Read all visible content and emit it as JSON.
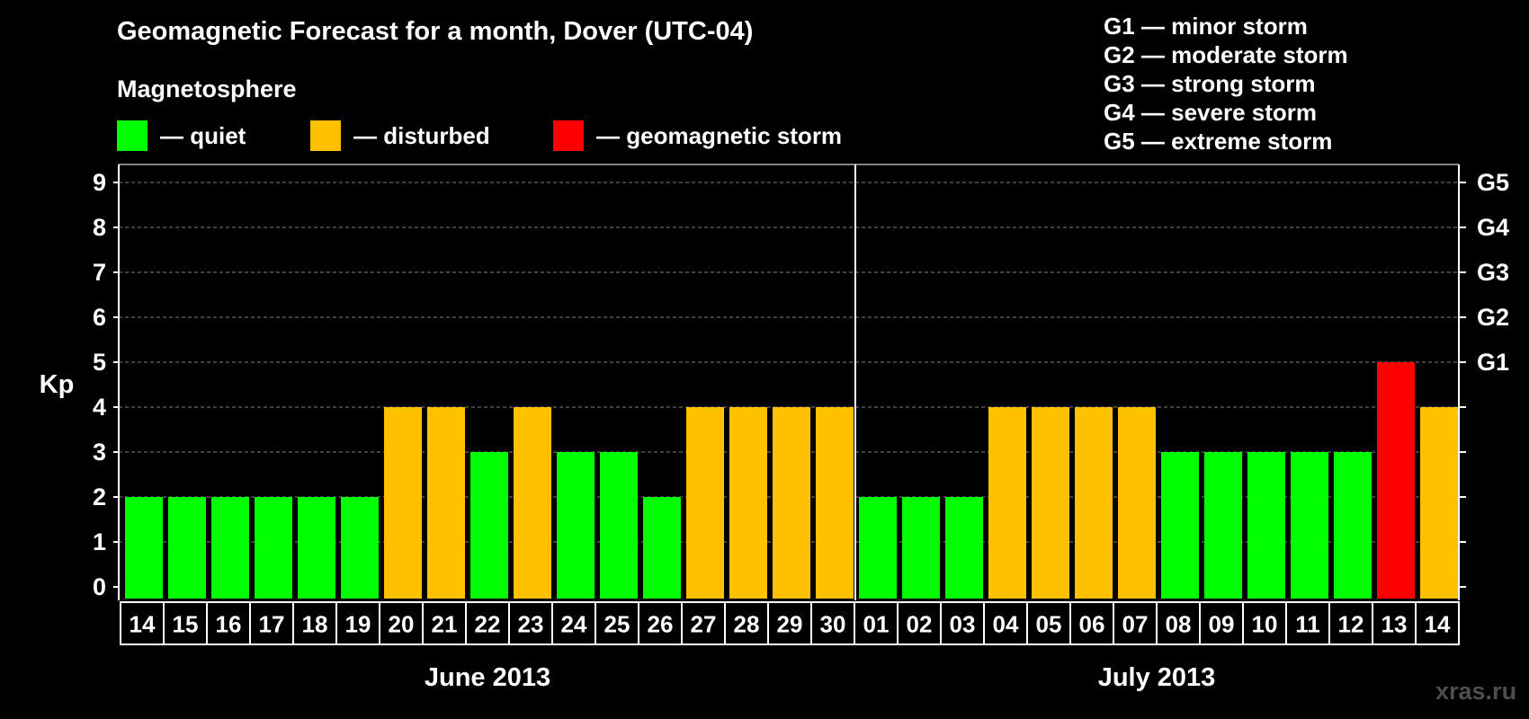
{
  "title": "Geomagnetic Forecast for a month, Dover (UTC-04)",
  "legend": {
    "heading": "Magnetosphere",
    "items": [
      {
        "label": "— quiet",
        "color": "#00ff00"
      },
      {
        "label": "— disturbed",
        "color": "#ffc000"
      },
      {
        "label": "— geomagnetic storm",
        "color": "#ff0000"
      }
    ]
  },
  "storm_scale": [
    "G1 — minor storm",
    "G2 — moderate storm",
    "G3 — strong storm",
    "G4 — severe storm",
    "G5 — extreme storm"
  ],
  "watermark": "xras.ru",
  "colors": {
    "background": "#000000",
    "axis": "#ffffff",
    "grid": "#808080",
    "watermark": "#4d4d4d"
  },
  "chart_data": {
    "type": "bar",
    "ylabel": "Kp",
    "ylim": [
      0,
      9
    ],
    "yticks": [
      0,
      1,
      2,
      3,
      4,
      5,
      6,
      7,
      8,
      9
    ],
    "grid": "dashed horizontal",
    "right_axis_labels": [
      {
        "value": 5,
        "label": "G1"
      },
      {
        "value": 6,
        "label": "G2"
      },
      {
        "value": 7,
        "label": "G3"
      },
      {
        "value": 8,
        "label": "G4"
      },
      {
        "value": 9,
        "label": "G5"
      }
    ],
    "months": [
      {
        "label": "June 2013",
        "start_index": 0,
        "end_index": 16
      },
      {
        "label": "July 2013",
        "start_index": 17,
        "end_index": 30
      }
    ],
    "categories": [
      "14",
      "15",
      "16",
      "17",
      "18",
      "19",
      "20",
      "21",
      "22",
      "23",
      "24",
      "25",
      "26",
      "27",
      "28",
      "29",
      "30",
      "01",
      "02",
      "03",
      "04",
      "05",
      "06",
      "07",
      "08",
      "09",
      "10",
      "11",
      "12",
      "13",
      "14"
    ],
    "values": [
      2,
      2,
      2,
      2,
      2,
      2,
      4,
      4,
      3,
      4,
      3,
      3,
      2,
      4,
      4,
      4,
      4,
      2,
      2,
      2,
      4,
      4,
      4,
      4,
      3,
      3,
      3,
      3,
      3,
      5,
      4
    ],
    "states": [
      "quiet",
      "quiet",
      "quiet",
      "quiet",
      "quiet",
      "quiet",
      "disturbed",
      "disturbed",
      "quiet",
      "disturbed",
      "quiet",
      "quiet",
      "quiet",
      "disturbed",
      "disturbed",
      "disturbed",
      "disturbed",
      "quiet",
      "quiet",
      "quiet",
      "disturbed",
      "disturbed",
      "disturbed",
      "disturbed",
      "quiet",
      "quiet",
      "quiet",
      "quiet",
      "quiet",
      "storm",
      "disturbed"
    ],
    "state_colors": {
      "quiet": "#00ff00",
      "disturbed": "#ffc000",
      "storm": "#ff0000"
    }
  }
}
